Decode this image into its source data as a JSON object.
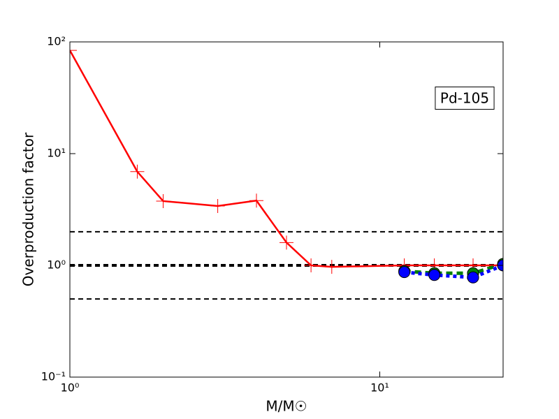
{
  "chart_data": {
    "type": "line",
    "x_label": "M/M☉",
    "y_label": "Overproduction factor",
    "annotation": "Pd-105",
    "xlog": true,
    "ylog": true,
    "xlim": [
      1,
      25
    ],
    "ylim": [
      0.1,
      100
    ],
    "xticks": [
      {
        "value": 1,
        "label": "10⁰"
      },
      {
        "value": 10,
        "label": "10¹"
      }
    ],
    "yticks": [
      {
        "value": 0.1,
        "label": "10⁻¹"
      },
      {
        "value": 1,
        "label": "10⁰"
      },
      {
        "value": 10,
        "label": "10¹"
      },
      {
        "value": 100,
        "label": "10²"
      }
    ],
    "hlines": [
      2,
      1,
      0.5
    ],
    "series": [
      {
        "color": "#ff0000",
        "marker": "plus",
        "linestyle": "solid",
        "x": [
          1,
          1.65,
          2,
          3,
          4,
          5,
          6,
          7,
          12,
          15,
          20,
          25
        ],
        "values": [
          84,
          6.9,
          3.76,
          3.4,
          3.8,
          1.6,
          1.0,
          0.97,
          1.0,
          1.0,
          1.0,
          1.0
        ]
      },
      {
        "color": "#008000",
        "marker": "circle",
        "linestyle": "dashed",
        "x": [
          12,
          15,
          20,
          25
        ],
        "values": [
          0.89,
          0.85,
          0.85,
          1.03
        ]
      },
      {
        "color": "#0000ff",
        "marker": "circle",
        "linestyle": "dotted",
        "x": [
          12,
          15,
          20,
          25
        ],
        "values": [
          0.87,
          0.82,
          0.78,
          1.0
        ]
      }
    ]
  }
}
